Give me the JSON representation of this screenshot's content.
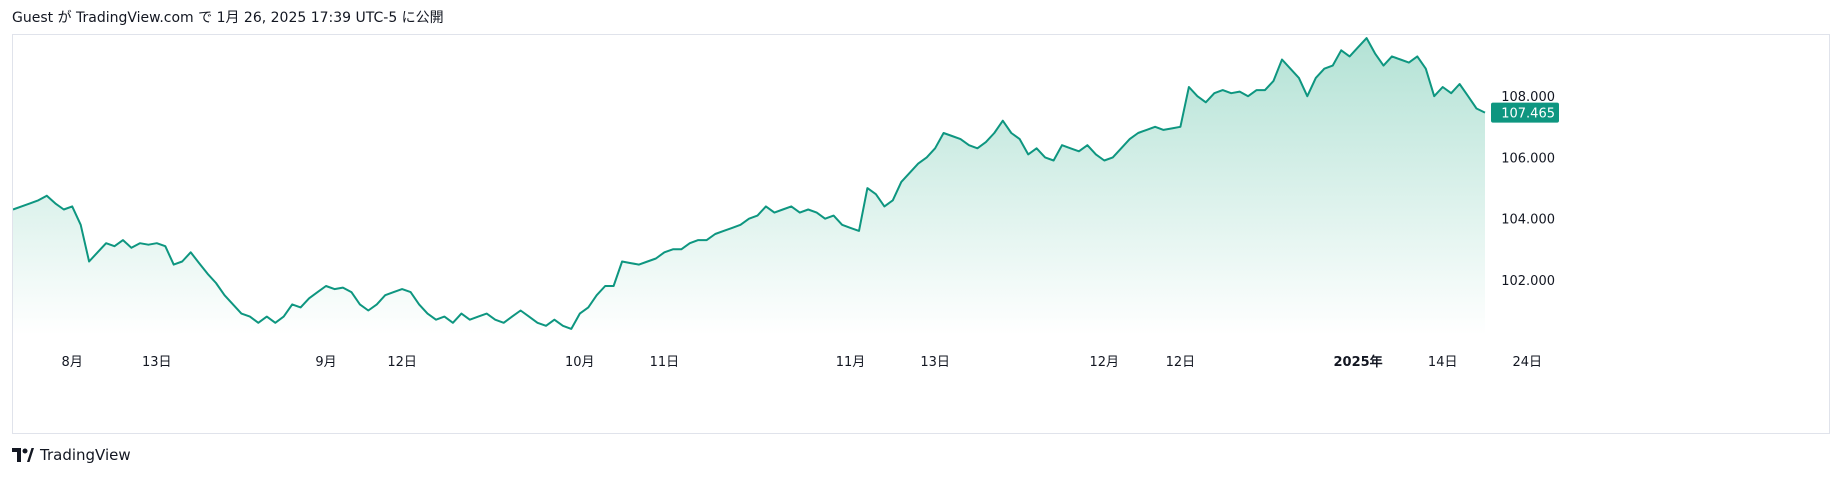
{
  "header": {
    "text": "Guest が TradingView.com で 1月 26, 2025 17:39 UTC-5 に公開"
  },
  "footer": {
    "brand": "TradingView",
    "logo_icon": "tradingview-logo-icon"
  },
  "colors": {
    "line": "#0e9680",
    "area_top": "#b3e2d5",
    "area_bottom": "#ffffff",
    "price_label_bg": "#0e9680",
    "price_label_text": "#ffffff",
    "axis_text": "#131722",
    "frame": "#e0e3eb"
  },
  "chart_data": {
    "type": "area",
    "y_ticks": [
      "102.000",
      "104.000",
      "106.000",
      "108.000"
    ],
    "y_tick_values": [
      102,
      104,
      106,
      108
    ],
    "ylim": [
      100.2,
      110.0
    ],
    "last_price_label": "107.465",
    "last_price": 107.465,
    "x_ticks": [
      {
        "label": "8月",
        "index": 7,
        "bold": false
      },
      {
        "label": "13日",
        "index": 17,
        "bold": false
      },
      {
        "label": "9月",
        "index": 37,
        "bold": false
      },
      {
        "label": "12日",
        "index": 46,
        "bold": false
      },
      {
        "label": "10月",
        "index": 67,
        "bold": false
      },
      {
        "label": "11日",
        "index": 77,
        "bold": false
      },
      {
        "label": "11月",
        "index": 99,
        "bold": false
      },
      {
        "label": "13日",
        "index": 109,
        "bold": false
      },
      {
        "label": "12月",
        "index": 129,
        "bold": false
      },
      {
        "label": "12日",
        "index": 138,
        "bold": false
      },
      {
        "label": "2025年",
        "index": 159,
        "bold": true
      },
      {
        "label": "14日",
        "index": 169,
        "bold": false
      },
      {
        "label": "24日",
        "index": 179,
        "bold": false
      }
    ],
    "values": [
      104.3,
      104.4,
      104.5,
      104.6,
      104.75,
      104.5,
      104.3,
      104.4,
      103.8,
      102.6,
      102.9,
      103.2,
      103.1,
      103.3,
      103.05,
      103.2,
      103.15,
      103.2,
      103.1,
      102.5,
      102.6,
      102.9,
      102.55,
      102.2,
      101.9,
      101.5,
      101.2,
      100.9,
      100.8,
      100.6,
      100.8,
      100.6,
      100.8,
      101.2,
      101.1,
      101.4,
      101.6,
      101.8,
      101.7,
      101.75,
      101.6,
      101.2,
      101.0,
      101.2,
      101.5,
      101.6,
      101.7,
      101.6,
      101.2,
      100.9,
      100.7,
      100.8,
      100.6,
      100.9,
      100.7,
      100.8,
      100.9,
      100.7,
      100.6,
      100.8,
      101.0,
      100.8,
      100.6,
      100.5,
      100.7,
      100.5,
      100.4,
      100.9,
      101.1,
      101.5,
      101.8,
      101.8,
      102.6,
      102.55,
      102.5,
      102.6,
      102.7,
      102.9,
      103.0,
      103.0,
      103.2,
      103.3,
      103.3,
      103.5,
      103.6,
      103.7,
      103.8,
      104.0,
      104.1,
      104.4,
      104.2,
      104.3,
      104.4,
      104.2,
      104.3,
      104.2,
      104.0,
      104.1,
      103.8,
      103.7,
      103.6,
      105.0,
      104.8,
      104.4,
      104.6,
      105.2,
      105.5,
      105.8,
      106.0,
      106.3,
      106.8,
      106.7,
      106.6,
      106.4,
      106.3,
      106.5,
      106.8,
      107.2,
      106.8,
      106.6,
      106.1,
      106.3,
      106.0,
      105.9,
      106.4,
      106.3,
      106.2,
      106.4,
      106.1,
      105.9,
      106.0,
      106.3,
      106.6,
      106.8,
      106.9,
      107.0,
      106.9,
      106.95,
      107.0,
      108.3,
      108.0,
      107.8,
      108.1,
      108.2,
      108.1,
      108.15,
      108.0,
      108.2,
      108.2,
      108.5,
      109.2,
      108.9,
      108.6,
      108.0,
      108.6,
      108.9,
      109.0,
      109.5,
      109.3,
      109.6,
      109.9,
      109.4,
      109.0,
      109.3,
      109.2,
      109.1,
      109.3,
      108.9,
      108.0,
      108.3,
      108.1,
      108.4,
      108.0,
      107.6,
      107.465
    ]
  }
}
